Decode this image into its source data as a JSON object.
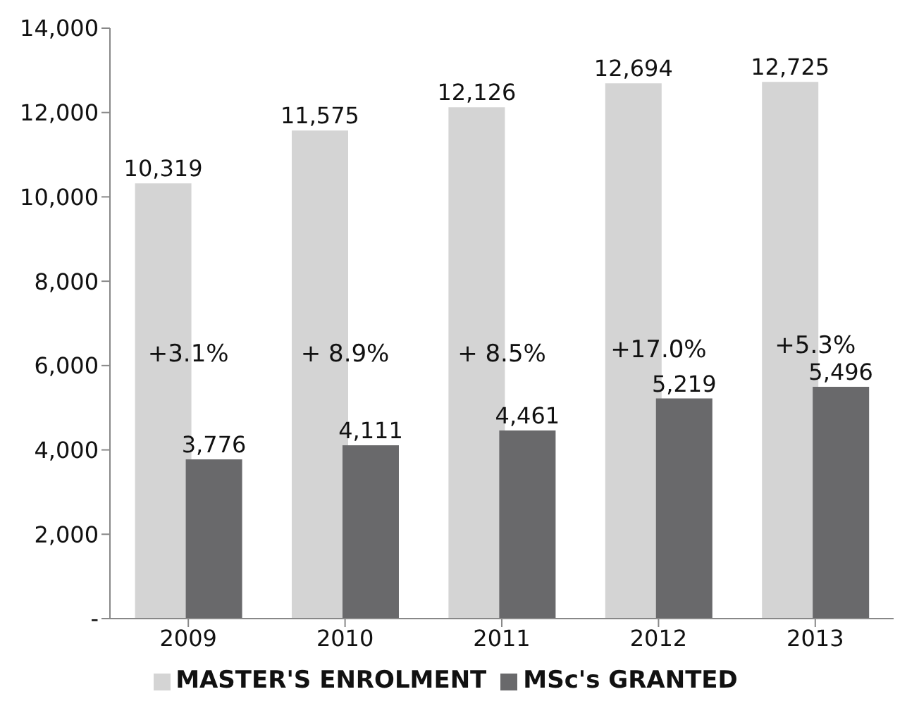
{
  "chart_data": {
    "type": "bar",
    "categories": [
      "2009",
      "2010",
      "2011",
      "2012",
      "2013"
    ],
    "series": [
      {
        "name": "MASTER'S ENROLMENT",
        "color": "#d4d4d4",
        "values": [
          10319,
          11575,
          12126,
          12694,
          12725
        ],
        "value_labels": [
          "10,319",
          "11,575",
          "12,126",
          "12,694",
          "12,725"
        ]
      },
      {
        "name": "MSc's GRANTED",
        "color": "#69696b",
        "values": [
          3776,
          4111,
          4461,
          5219,
          5496
        ],
        "value_labels": [
          "3,776",
          "4,111",
          "4,461",
          "5,219",
          "5,496"
        ]
      }
    ],
    "ylim": [
      0,
      14000
    ],
    "yticks": [
      {
        "value": 0,
        "label": "-"
      },
      {
        "value": 2000,
        "label": "2,000"
      },
      {
        "value": 4000,
        "label": "4,000"
      },
      {
        "value": 6000,
        "label": "6,000"
      },
      {
        "value": 8000,
        "label": "8,000"
      },
      {
        "value": 10000,
        "label": "10,000"
      },
      {
        "value": 12000,
        "label": "12,000"
      },
      {
        "value": 14000,
        "label": "14,000"
      }
    ],
    "legend": "bottom",
    "grid": false,
    "annotations": [
      {
        "text": "+3.1%",
        "x": "2009",
        "y": 6300
      },
      {
        "text": "+ 8.9%",
        "x": "2010",
        "y": 6300
      },
      {
        "text": "+ 8.5%",
        "x": "2011",
        "y": 6300
      },
      {
        "text": "+17.0%",
        "x": "2012",
        "y": 6400
      },
      {
        "text": "+5.3%",
        "x": "2013",
        "y": 6500
      }
    ]
  }
}
